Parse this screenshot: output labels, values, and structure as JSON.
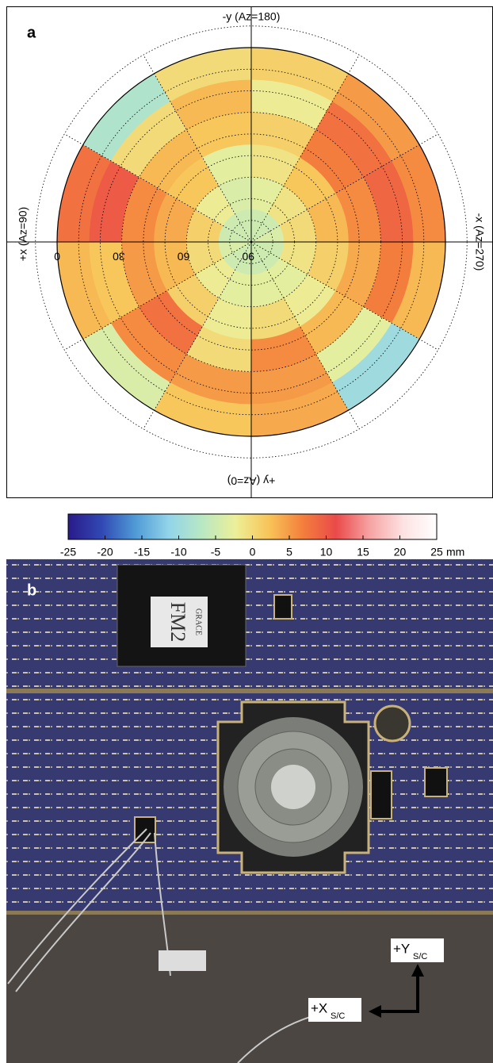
{
  "chart_data": {
    "type": "polar-heatmap",
    "panel_label": "a",
    "direction_labels": {
      "top": "-y (Az=180)",
      "left": "+x (Az=90)",
      "right": "-x (Az=270)",
      "bottom": "+y (Az=0)"
    },
    "rlim": [
      90,
      0
    ],
    "rticks": [
      0,
      30,
      60,
      90
    ],
    "rgrid": [
      -10,
      0,
      10,
      20,
      30,
      40,
      50,
      60,
      70,
      80
    ],
    "azgrid": [
      0,
      30,
      60,
      90,
      120,
      150,
      180,
      210,
      240,
      270,
      300,
      330
    ],
    "r_edges": [
      0,
      15,
      30,
      45,
      60,
      75,
      90
    ],
    "az_edges": [
      0,
      30,
      60,
      90,
      120,
      150,
      180,
      210,
      240,
      270,
      300,
      330,
      360
    ],
    "values": [
      [
        2,
        -4,
        3,
        8,
        -8,
        0,
        1,
        5,
        6,
        3,
        -10,
        4
      ],
      [
        5,
        6,
        2,
        10,
        0,
        3,
        -2,
        8,
        9,
        7,
        -3,
        5
      ],
      [
        0,
        8,
        5,
        6,
        3,
        2,
        1,
        7,
        6,
        4,
        3,
        6
      ],
      [
        -2,
        1,
        3,
        4,
        2,
        -3,
        -1,
        2,
        3,
        1,
        -2,
        0
      ],
      [
        -3,
        -2,
        0,
        1,
        -2,
        -4,
        -3,
        -1,
        0,
        -1,
        -3,
        -3
      ],
      [
        -5,
        -5,
        -4,
        -5,
        -5,
        -5,
        -5,
        -5,
        -4,
        -5,
        -5,
        -5
      ]
    ],
    "clim": [
      -25,
      25
    ],
    "cticks": [
      -25,
      -20,
      -15,
      -10,
      -5,
      0,
      5,
      10,
      15,
      20,
      25
    ],
    "cunit": "mm",
    "colormap": [
      "#2a1a8a",
      "#3148b4",
      "#4f9ad6",
      "#92d4ea",
      "#b9e8c2",
      "#ecef98",
      "#f8c458",
      "#f37f3c",
      "#ea4a4a",
      "#f6a3a3",
      "#fde2e2",
      "#ffffff"
    ]
  },
  "photo": {
    "label": "b",
    "plate": {
      "top": "GRACE",
      "main": "FM2"
    },
    "axes": [
      {
        "name": "+Y",
        "sub": "S/C"
      },
      {
        "name": "+X",
        "sub": "S/C"
      }
    ]
  }
}
